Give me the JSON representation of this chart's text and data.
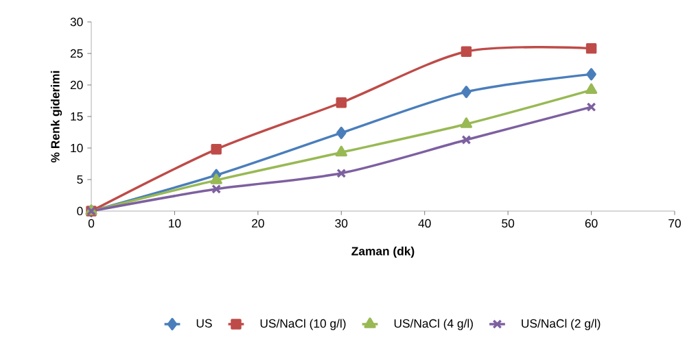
{
  "chart_data": {
    "type": "line",
    "xlabel": "Zaman (dk)",
    "ylabel": "% Renk giderimi",
    "xlim": [
      0,
      70
    ],
    "xticks": [
      0,
      10,
      20,
      30,
      40,
      50,
      60,
      70
    ],
    "ylim": [
      0,
      30
    ],
    "yticks": [
      0,
      5,
      10,
      15,
      20,
      25,
      30
    ],
    "grid": false,
    "legend": "bottom",
    "line_style": "solid",
    "x": [
      0,
      15,
      30,
      45,
      60
    ],
    "series": [
      {
        "name": "US",
        "color": "#4a7ebb",
        "marker": "diamond",
        "values": [
          0,
          5.7,
          12.4,
          18.9,
          21.7
        ]
      },
      {
        "name": "US/NaCl (10 g/l)",
        "color": "#be4b48",
        "marker": "square",
        "values": [
          0,
          9.8,
          17.2,
          25.3,
          25.8
        ]
      },
      {
        "name": "US/NaCl (4 g/l)",
        "color": "#98b954",
        "marker": "triangle",
        "values": [
          0,
          4.9,
          9.3,
          13.8,
          19.2
        ]
      },
      {
        "name": "US/NaCl (2 g/l)",
        "color": "#7d60a0",
        "marker": "cross",
        "values": [
          0,
          3.5,
          6.0,
          11.3,
          16.5
        ]
      }
    ]
  }
}
